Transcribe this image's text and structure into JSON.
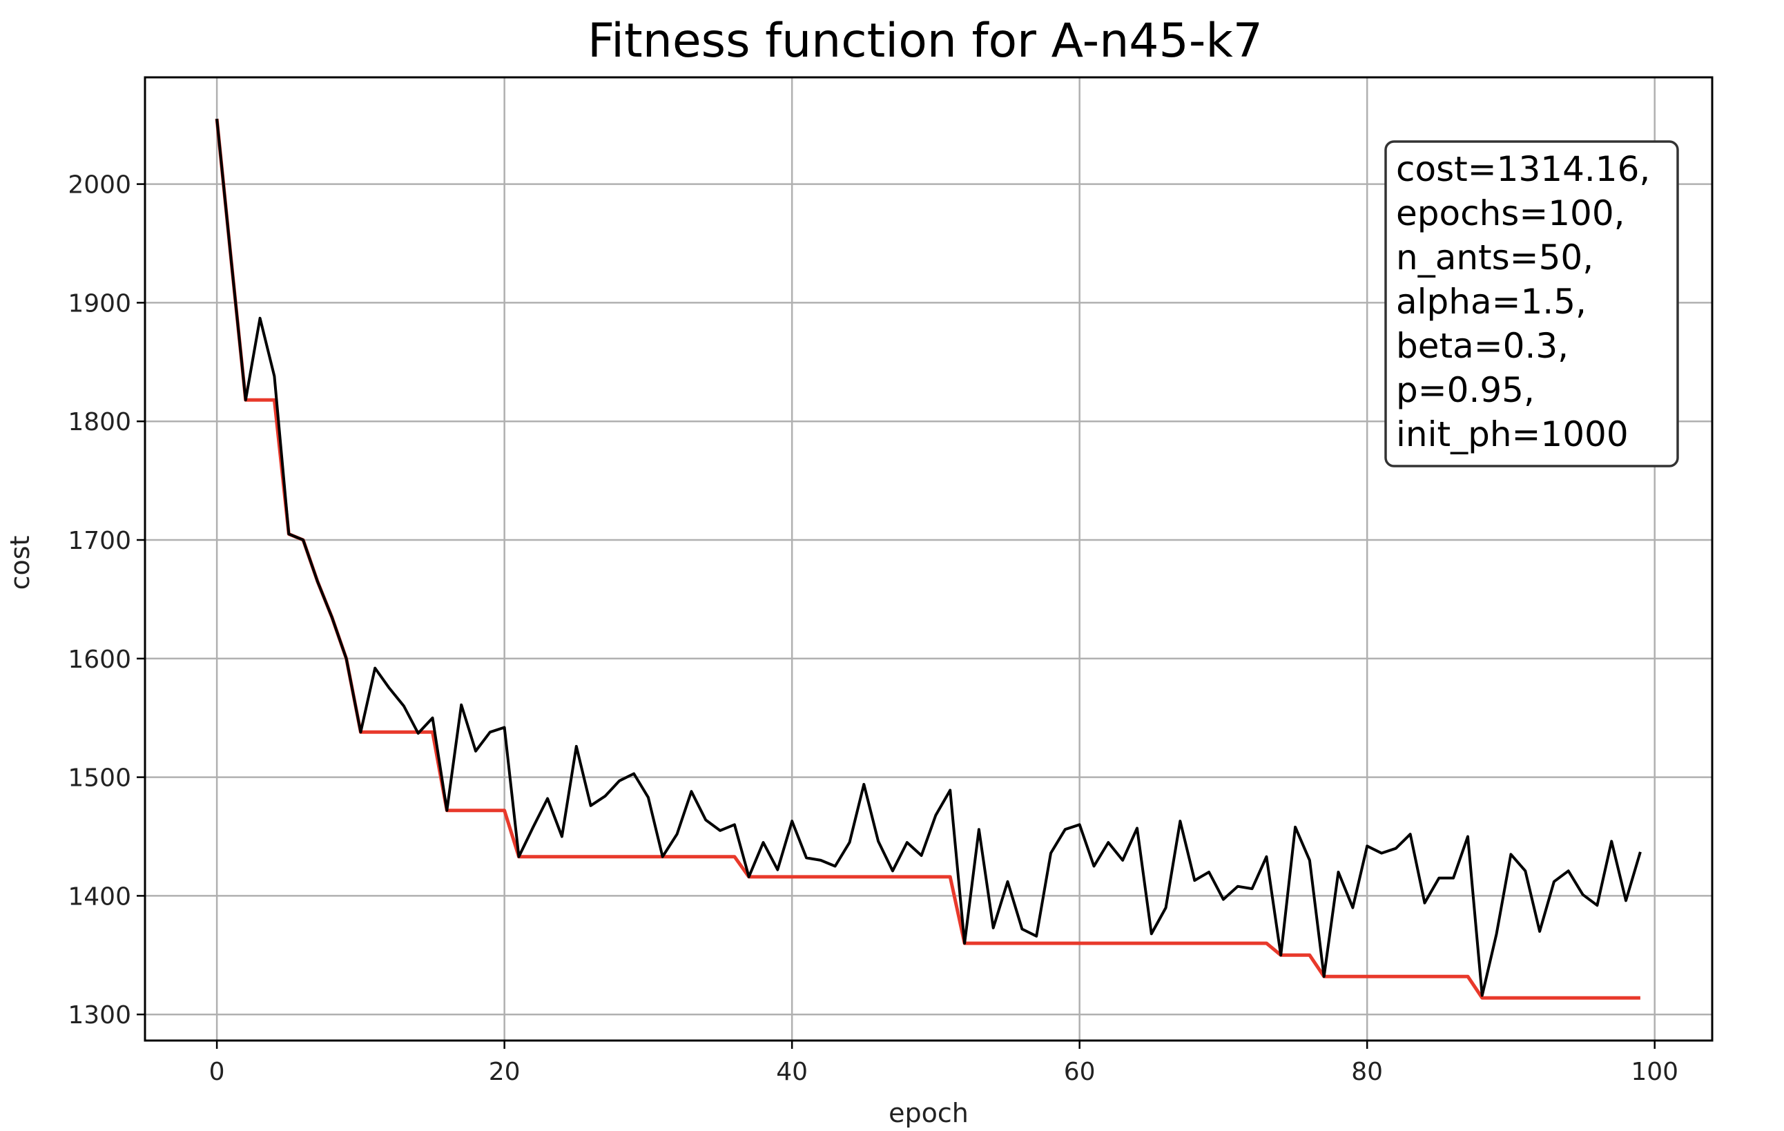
{
  "chart_data": {
    "type": "line",
    "title": "Fitness function for A-n45-k7",
    "xlabel": "epoch",
    "ylabel": "cost",
    "xlim": [
      -5,
      104
    ],
    "ylim": [
      1278,
      2090
    ],
    "xticks": [
      0,
      20,
      40,
      60,
      80,
      100
    ],
    "yticks": [
      1300,
      1400,
      1500,
      1600,
      1700,
      1800,
      1900,
      2000
    ],
    "grid": true,
    "annotation": {
      "position": "top-right",
      "lines": [
        "cost=1314.16,",
        "epochs=100,",
        "n_ants=50,",
        "alpha=1.5,",
        "beta=0.3,",
        "p=0.95,",
        "init_ph=1000"
      ]
    },
    "series": [
      {
        "name": "",
        "color": "#e8392b",
        "values": [
          2055,
          1935,
          1818,
          1818,
          1818,
          1705,
          1700,
          1665,
          1635,
          1600,
          1538,
          1538,
          1538,
          1538,
          1538,
          1538,
          1472,
          1472,
          1472,
          1472,
          1472,
          1433,
          1433,
          1433,
          1433,
          1433,
          1433,
          1433,
          1433,
          1433,
          1433,
          1433,
          1433,
          1433,
          1433,
          1433,
          1433,
          1416,
          1416,
          1416,
          1416,
          1416,
          1416,
          1416,
          1416,
          1416,
          1416,
          1416,
          1416,
          1416,
          1416,
          1416,
          1360,
          1360,
          1360,
          1360,
          1360,
          1360,
          1360,
          1360,
          1360,
          1360,
          1360,
          1360,
          1360,
          1360,
          1360,
          1360,
          1360,
          1360,
          1360,
          1360,
          1360,
          1360,
          1350,
          1350,
          1350,
          1332,
          1332,
          1332,
          1332,
          1332,
          1332,
          1332,
          1332,
          1332,
          1332,
          1332,
          1314,
          1314,
          1314,
          1314,
          1314,
          1314,
          1314,
          1314,
          1314,
          1314,
          1314,
          1314
        ]
      },
      {
        "name": "",
        "color": "#000000",
        "values": [
          2055,
          1935,
          1818,
          1887,
          1838,
          1705,
          1700,
          1665,
          1635,
          1600,
          1538,
          1592,
          1575,
          1560,
          1537,
          1550,
          1472,
          1561,
          1522,
          1538,
          1542,
          1433,
          1458,
          1482,
          1450,
          1526,
          1476,
          1484,
          1497,
          1503,
          1483,
          1433,
          1452,
          1488,
          1464,
          1455,
          1460,
          1416,
          1445,
          1422,
          1463,
          1432,
          1430,
          1425,
          1445,
          1494,
          1446,
          1421,
          1445,
          1434,
          1468,
          1489,
          1360,
          1456,
          1373,
          1412,
          1372,
          1366,
          1436,
          1456,
          1460,
          1425,
          1445,
          1430,
          1457,
          1368,
          1390,
          1463,
          1413,
          1420,
          1397,
          1408,
          1406,
          1433,
          1350,
          1458,
          1430,
          1332,
          1420,
          1390,
          1442,
          1436,
          1440,
          1452,
          1394,
          1415,
          1415,
          1450,
          1316,
          1368,
          1435,
          1421,
          1370,
          1412,
          1421,
          1401,
          1392,
          1446,
          1396,
          1437
        ]
      }
    ]
  }
}
